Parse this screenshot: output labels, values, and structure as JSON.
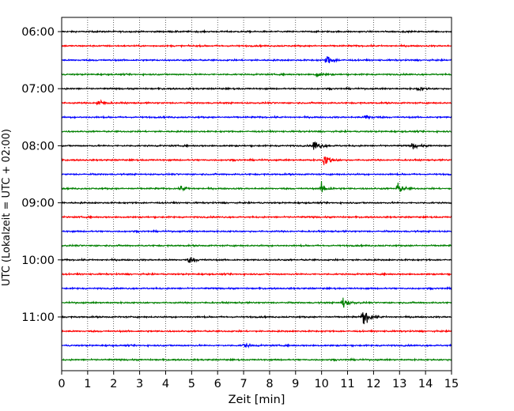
{
  "chart_data": {
    "type": "line",
    "title": "",
    "xlabel": "Zeit  [min]",
    "ylabel": "UTC (Lokalzeit = UTC + 02:00)",
    "xlim": [
      0,
      15
    ],
    "xticks": [
      0,
      1,
      2,
      3,
      4,
      5,
      6,
      7,
      8,
      9,
      10,
      11,
      12,
      13,
      14,
      15
    ],
    "grid": "vertical dotted",
    "row_interval_minutes": 15,
    "start_time": "06:00",
    "row_count": 24,
    "color_cycle": [
      "#000000",
      "#ff0000",
      "#0000ff",
      "#008000"
    ],
    "ytick_labels": [
      "06:00",
      "07:00",
      "08:00",
      "09:00",
      "10:00",
      "11:00"
    ],
    "events": [
      {
        "row_time": "06:30",
        "minute": 10.2,
        "amplitude": 0.7
      },
      {
        "row_time": "06:45",
        "minute": 9.8,
        "amplitude": 0.4
      },
      {
        "row_time": "07:00",
        "minute": 13.7,
        "amplitude": 0.3
      },
      {
        "row_time": "07:15",
        "minute": 1.4,
        "amplitude": 0.5
      },
      {
        "row_time": "07:30",
        "minute": 11.7,
        "amplitude": 0.4
      },
      {
        "row_time": "08:00",
        "minute": 9.7,
        "amplitude": 0.8
      },
      {
        "row_time": "08:00",
        "minute": 13.5,
        "amplitude": 0.4
      },
      {
        "row_time": "08:15",
        "minute": 10.1,
        "amplitude": 0.9
      },
      {
        "row_time": "08:45",
        "minute": 4.6,
        "amplitude": 0.4
      },
      {
        "row_time": "08:45",
        "minute": 10.0,
        "amplitude": 0.7
      },
      {
        "row_time": "08:45",
        "minute": 12.9,
        "amplitude": 0.8
      },
      {
        "row_time": "10:00",
        "minute": 4.9,
        "amplitude": 0.4
      },
      {
        "row_time": "10:45",
        "minute": 10.8,
        "amplitude": 0.8
      },
      {
        "row_time": "11:00",
        "minute": 11.6,
        "amplitude": 1.3
      },
      {
        "row_time": "11:30",
        "minute": 7.0,
        "amplitude": 0.3
      }
    ]
  }
}
